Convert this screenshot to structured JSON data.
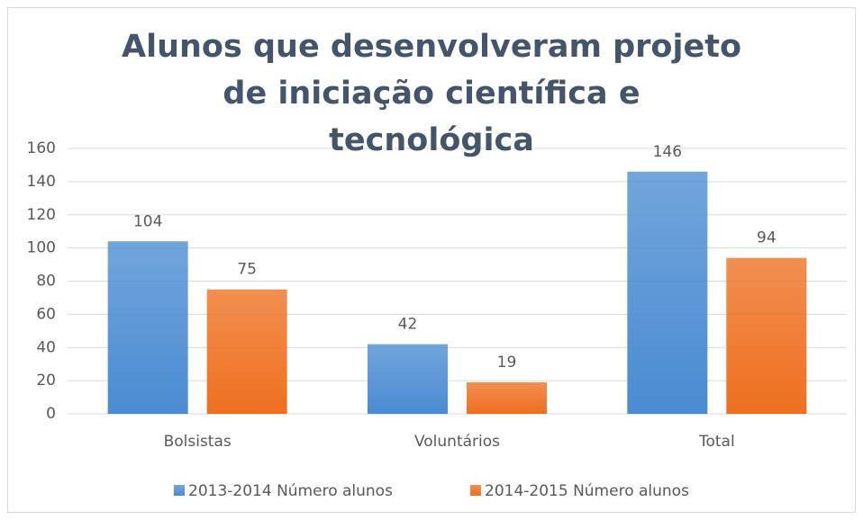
{
  "chart_data": {
    "type": "bar",
    "title": "Alunos que desenvolveram projeto de iniciação científica e tecnológica",
    "categories": [
      "Bolsistas",
      "Voluntários",
      "Total"
    ],
    "series": [
      {
        "name": "2013-2014 Número alunos",
        "color": "#4a8bd2",
        "values": [
          104,
          42,
          146
        ]
      },
      {
        "name": "2014-2015 Número alunos",
        "color": "#ee6f1f",
        "values": [
          75,
          19,
          94
        ]
      }
    ],
    "ylim": [
      0,
      160
    ],
    "yticks": [
      0,
      20,
      40,
      60,
      80,
      100,
      120,
      140,
      160
    ],
    "grid": true,
    "legend": "bottom"
  }
}
